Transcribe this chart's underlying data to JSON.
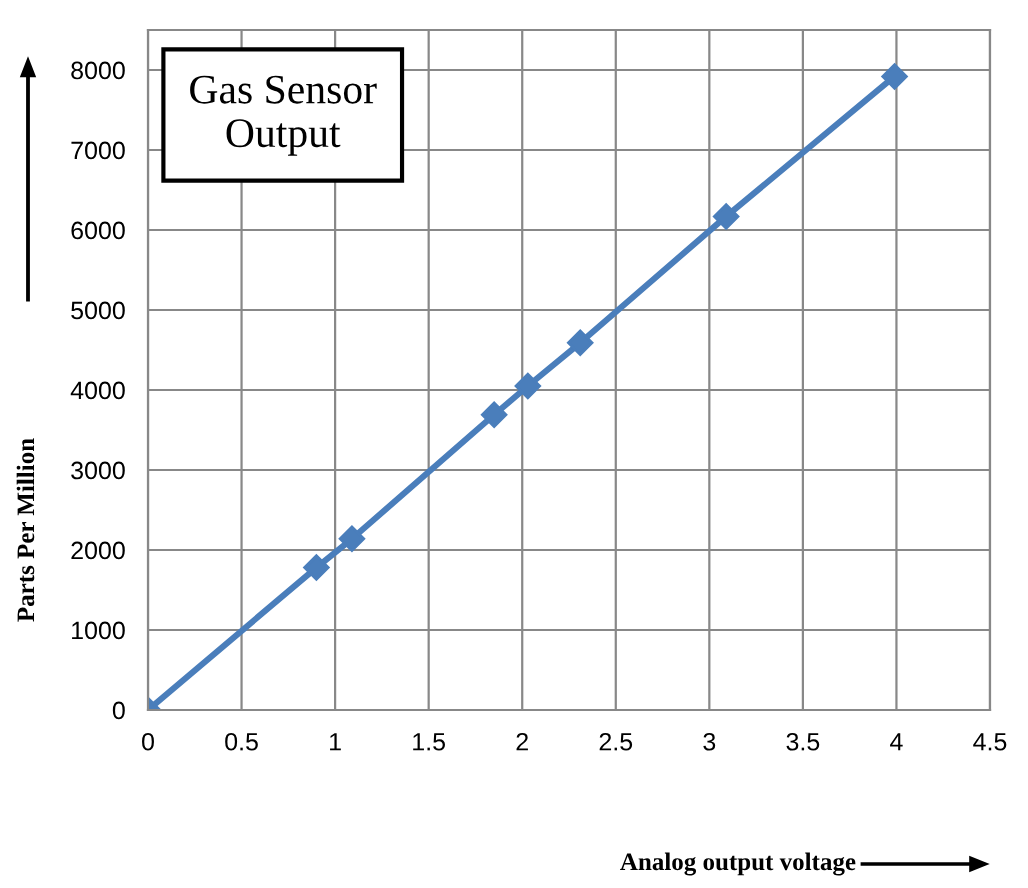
{
  "chart_data": {
    "type": "line",
    "title": "Gas Sensor\nOutput",
    "xlabel": "Analog output voltage",
    "ylabel": "Parts Per Million",
    "x": [
      0,
      0.9,
      1.09,
      1.85,
      2.03,
      2.31,
      3.09,
      3.99
    ],
    "series": [
      {
        "color": "#4a7ebb",
        "values": [
          0,
          1780,
          2140,
          3690,
          4050,
          4590,
          6170,
          7920
        ]
      }
    ],
    "xlim": [
      0,
      4.5
    ],
    "xticks": [
      0,
      0.5,
      1,
      1.5,
      2,
      2.5,
      3,
      3.5,
      4,
      4.5
    ],
    "ylim": [
      0,
      8500
    ],
    "yticks": [
      0,
      1000,
      2000,
      3000,
      4000,
      5000,
      6000,
      7000,
      8000
    ],
    "grid": true,
    "marker": "diamond",
    "line_style": "solid",
    "legend": false
  }
}
